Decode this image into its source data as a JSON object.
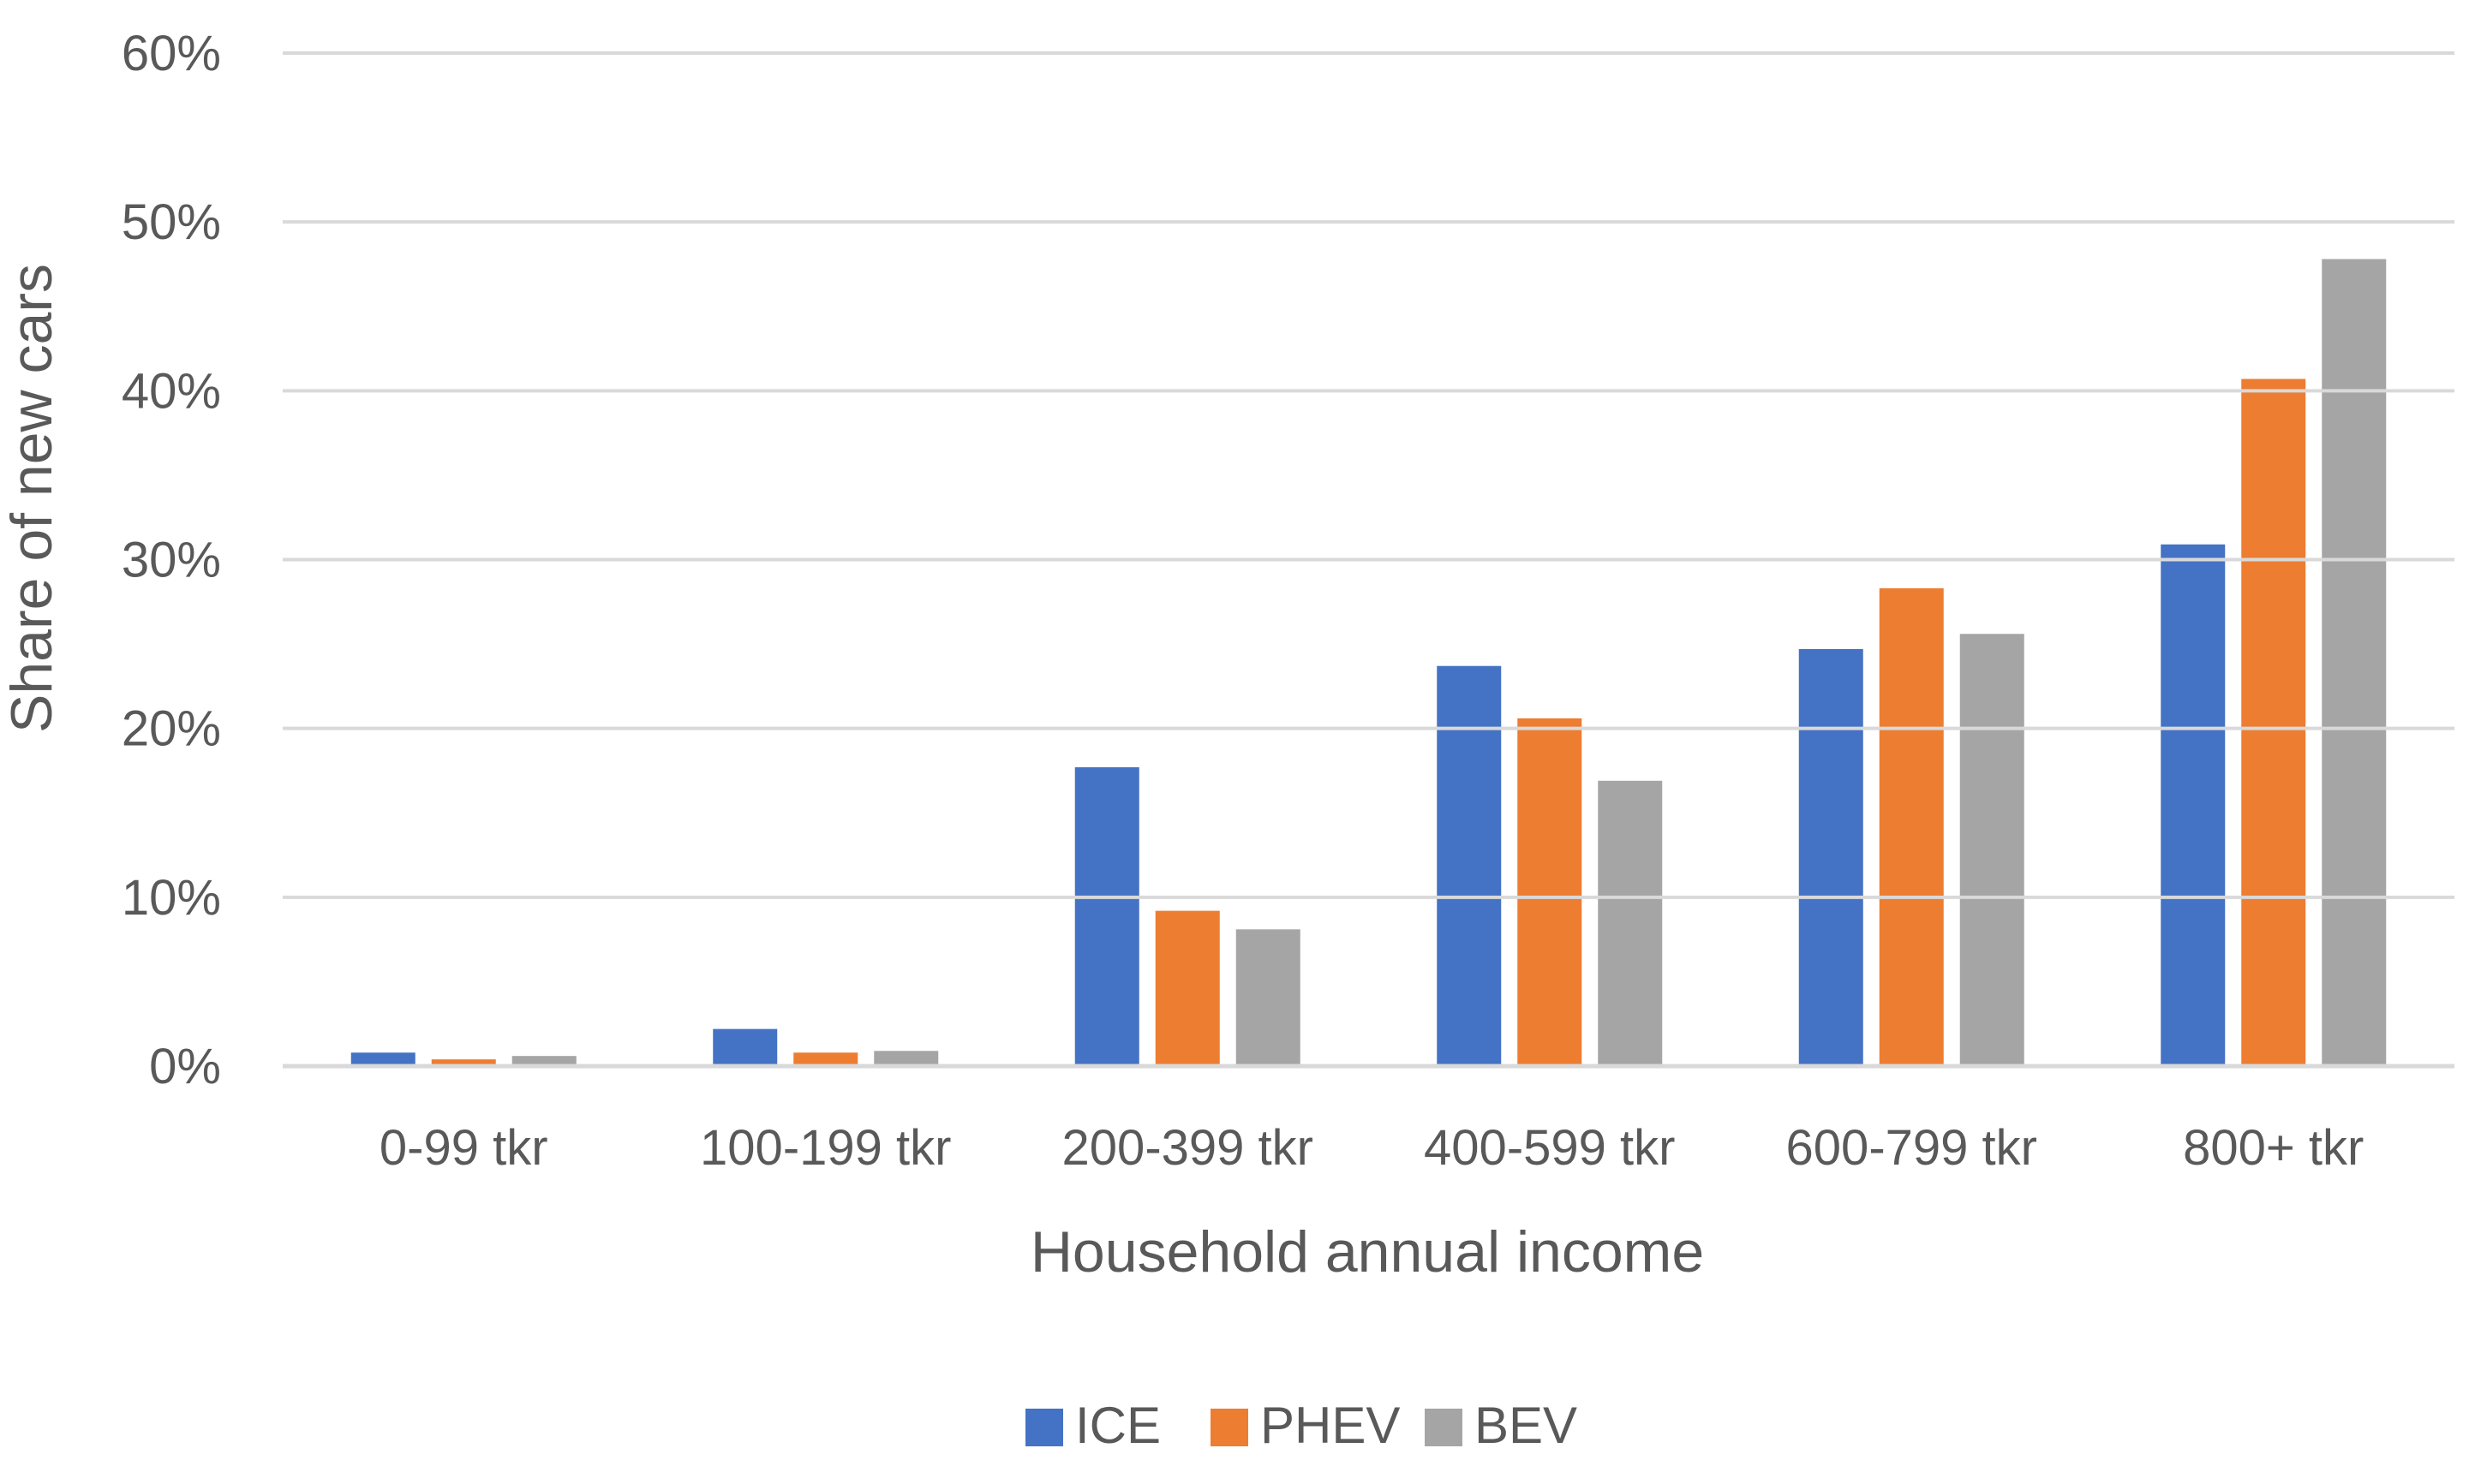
{
  "chart_data": {
    "type": "bar",
    "title": "",
    "xlabel": "Household annual income",
    "ylabel": "Share of new cars",
    "categories": [
      "0-99 tkr",
      "100-199 tkr",
      "200-399 tkr",
      "400-599 tkr",
      "600-799 tkr",
      "800+ tkr"
    ],
    "series": [
      {
        "name": "ICE",
        "color": "#4472C4",
        "values": [
          0.8,
          2.2,
          17.7,
          23.7,
          24.7,
          30.9
        ]
      },
      {
        "name": "PHEV",
        "color": "#ED7D31",
        "values": [
          0.4,
          0.8,
          9.2,
          20.6,
          28.3,
          40.7
        ]
      },
      {
        "name": "BEV",
        "color": "#A5A5A5",
        "values": [
          0.6,
          0.9,
          8.1,
          16.9,
          25.6,
          47.8
        ]
      }
    ],
    "ylim": [
      0,
      60
    ],
    "yticks": [
      0,
      10,
      20,
      30,
      40,
      50,
      60
    ],
    "ytick_labels": [
      "0%",
      "10%",
      "20%",
      "30%",
      "40%",
      "50%",
      "60%"
    ],
    "grid": true,
    "legend_position": "bottom-center",
    "gridline_color": "#D9D9D9",
    "text_color": "#595959"
  }
}
